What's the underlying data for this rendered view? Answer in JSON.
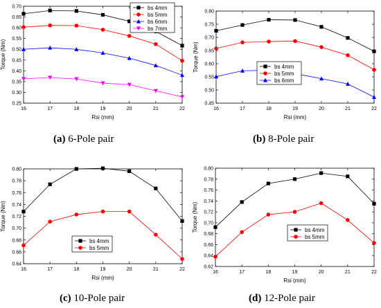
{
  "captions": [
    {
      "letter": "(a)",
      "text": "6-Pole pair"
    },
    {
      "letter": "(b)",
      "text": "8-Pole pair"
    },
    {
      "letter": "(c)",
      "text": "10-Pole pair"
    },
    {
      "letter": "(d)",
      "text": "12-Pole pair"
    }
  ],
  "chart_data": [
    {
      "type": "line",
      "xlabel": "Rsi (mm)",
      "ylabel": "Torque (Nm)",
      "x": [
        16,
        17,
        18,
        19,
        20,
        21,
        22
      ],
      "xlim": [
        16,
        22
      ],
      "ylim": [
        0.25,
        0.7
      ],
      "yticks": [
        0.25,
        0.3,
        0.35,
        0.4,
        0.45,
        0.5,
        0.55,
        0.6,
        0.65,
        0.7
      ],
      "legend_position": "top-right",
      "series": [
        {
          "name": "bs 4mm",
          "color": "#000000",
          "marker": "square",
          "values": [
            0.665,
            0.68,
            0.678,
            0.66,
            0.63,
            0.583,
            0.517
          ]
        },
        {
          "name": "bs 5mm",
          "color": "#ff0000",
          "marker": "circle",
          "values": [
            0.603,
            0.611,
            0.61,
            0.591,
            0.562,
            0.524,
            0.447
          ]
        },
        {
          "name": "bs 6mm",
          "color": "#0000ff",
          "marker": "triangle-up",
          "values": [
            0.5,
            0.507,
            0.5,
            0.483,
            0.459,
            0.425,
            0.38
          ]
        },
        {
          "name": "bs 7mm",
          "color": "#ff00ff",
          "marker": "triangle-down",
          "values": [
            0.363,
            0.369,
            0.362,
            0.343,
            0.336,
            0.307,
            0.279
          ]
        }
      ]
    },
    {
      "type": "line",
      "xlabel": "Rsi (mm)",
      "ylabel": "Torque (Nm)",
      "x": [
        16,
        17,
        18,
        19,
        20,
        21,
        22
      ],
      "xlim": [
        16,
        22
      ],
      "ylim": [
        0.45,
        0.8
      ],
      "yticks": [
        0.45,
        0.5,
        0.55,
        0.6,
        0.65,
        0.7,
        0.75,
        0.8
      ],
      "legend_position": "lower-right",
      "series": [
        {
          "name": "bs 4mm",
          "color": "#000000",
          "marker": "square",
          "values": [
            0.725,
            0.747,
            0.767,
            0.766,
            0.74,
            0.698,
            0.647
          ]
        },
        {
          "name": "bs 5mm",
          "color": "#ff0000",
          "marker": "circle",
          "values": [
            0.658,
            0.681,
            0.684,
            0.686,
            0.663,
            0.632,
            0.577
          ]
        },
        {
          "name": "bs 6mm",
          "color": "#0000ff",
          "marker": "triangle-up",
          "values": [
            0.551,
            0.573,
            0.575,
            0.562,
            0.543,
            0.523,
            0.473
          ]
        }
      ]
    },
    {
      "type": "line",
      "xlabel": "Rsi (mm)",
      "ylabel": "Torque (Nm)",
      "x": [
        16,
        17,
        18,
        19,
        20,
        21,
        22
      ],
      "xlim": [
        16,
        22
      ],
      "ylim": [
        0.64,
        0.8
      ],
      "yticks": [
        0.64,
        0.66,
        0.68,
        0.7,
        0.72,
        0.74,
        0.76,
        0.78,
        0.8
      ],
      "legend_position": "lower-center",
      "series": [
        {
          "name": "bs 4mm",
          "color": "#000000",
          "marker": "square",
          "values": [
            0.728,
            0.774,
            0.8,
            0.801,
            0.796,
            0.767,
            0.712
          ]
        },
        {
          "name": "bs 5mm",
          "color": "#ff0000",
          "marker": "circle",
          "values": [
            0.671,
            0.711,
            0.723,
            0.728,
            0.728,
            0.689,
            0.648
          ]
        }
      ]
    },
    {
      "type": "line",
      "xlabel": "Rsi (mm)",
      "ylabel": "Torque (Nm)",
      "x": [
        16,
        17,
        18,
        19,
        20,
        21,
        22
      ],
      "xlim": [
        16,
        22
      ],
      "ylim": [
        0.62,
        0.8
      ],
      "yticks": [
        0.62,
        0.64,
        0.66,
        0.68,
        0.7,
        0.72,
        0.74,
        0.76,
        0.78,
        0.8
      ],
      "legend_position": "lower-right",
      "series": [
        {
          "name": "bs 4mm",
          "color": "#000000",
          "marker": "square",
          "values": [
            0.692,
            0.738,
            0.772,
            0.78,
            0.791,
            0.785,
            0.735
          ]
        },
        {
          "name": "bs 5mm",
          "color": "#ff0000",
          "marker": "circle",
          "values": [
            0.638,
            0.683,
            0.715,
            0.72,
            0.736,
            0.705,
            0.663
          ]
        }
      ]
    }
  ]
}
